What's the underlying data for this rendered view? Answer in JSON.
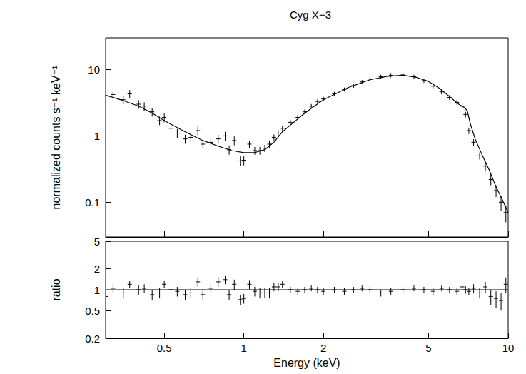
{
  "chart_data": [
    {
      "type": "scatter",
      "title": "Cyg X−3",
      "y_label": "normalized counts s⁻¹ keV⁻¹",
      "log": true,
      "grid": false,
      "tick_labels": "y",
      "xlim": [
        0.3,
        10
      ],
      "xticks": [
        0.5,
        1,
        2,
        5,
        10
      ],
      "ylim": [
        0.03,
        30
      ],
      "yticks": [
        0.1,
        1,
        10
      ],
      "series": [
        {
          "type": "scatter",
          "color": "#000000",
          "marker": "cross",
          "x": [
            0.3,
            0.32,
            0.35,
            0.37,
            0.4,
            0.42,
            0.45,
            0.48,
            0.5,
            0.53,
            0.56,
            0.6,
            0.63,
            0.67,
            0.7,
            0.75,
            0.8,
            0.85,
            0.88,
            0.92,
            0.97,
            1.0,
            1.05,
            1.1,
            1.15,
            1.2,
            1.25,
            1.3,
            1.35,
            1.4,
            1.5,
            1.6,
            1.7,
            1.8,
            1.9,
            2.0,
            2.2,
            2.4,
            2.6,
            2.8,
            3.0,
            3.3,
            3.6,
            4.0,
            4.4,
            4.8,
            5.2,
            5.6,
            6.0,
            6.4,
            6.7,
            6.9,
            7.1,
            7.4,
            7.8,
            8.2,
            8.6,
            9.0,
            9.4,
            9.8
          ],
          "values": [
            4,
            4.2,
            3.5,
            4.3,
            3,
            2.8,
            2.3,
            1.7,
            1.9,
            1.3,
            1.1,
            0.9,
            0.95,
            1.2,
            0.75,
            0.8,
            0.9,
            1.0,
            0.62,
            0.85,
            0.42,
            0.43,
            0.75,
            0.6,
            0.6,
            0.65,
            0.75,
            0.95,
            1.1,
            1.3,
            1.6,
            1.9,
            2.3,
            2.8,
            3.3,
            3.6,
            4.3,
            5,
            5.7,
            6.5,
            7.2,
            7.8,
            8.2,
            8.3,
            7.8,
            6.8,
            5.6,
            4.6,
            3.8,
            3.2,
            2.8,
            2.1,
            1.2,
            0.8,
            0.5,
            0.35,
            0.22,
            0.15,
            0.1,
            0.07
          ],
          "errors": [
            0.6,
            0.6,
            0.5,
            0.6,
            0.45,
            0.4,
            0.35,
            0.25,
            0.3,
            0.2,
            0.17,
            0.14,
            0.14,
            0.18,
            0.11,
            0.12,
            0.14,
            0.15,
            0.1,
            0.13,
            0.07,
            0.07,
            0.1,
            0.08,
            0.08,
            0.08,
            0.09,
            0.1,
            0.12,
            0.13,
            0.15,
            0.17,
            0.2,
            0.22,
            0.25,
            0.28,
            0.3,
            0.35,
            0.4,
            0.45,
            0.5,
            0.55,
            0.6,
            0.6,
            0.55,
            0.5,
            0.45,
            0.38,
            0.32,
            0.28,
            0.25,
            0.2,
            0.13,
            0.09,
            0.06,
            0.05,
            0.04,
            0.03,
            0.025,
            0.02
          ]
        },
        {
          "type": "line",
          "color": "#000000",
          "line_style": "solid",
          "x": [
            0.3,
            0.35,
            0.4,
            0.45,
            0.5,
            0.6,
            0.7,
            0.8,
            0.9,
            1.0,
            1.1,
            1.2,
            1.3,
            1.4,
            1.5,
            1.7,
            2.0,
            2.5,
            3.0,
            3.5,
            4.0,
            4.5,
            5.0,
            5.5,
            6.0,
            6.5,
            6.8,
            7.0,
            7.2,
            7.5,
            8,
            8.5,
            9,
            9.5,
            10
          ],
          "values": [
            4.1,
            3.4,
            2.8,
            2.2,
            1.7,
            1.15,
            0.85,
            0.7,
            0.6,
            0.56,
            0.56,
            0.62,
            0.8,
            1.15,
            1.45,
            2.2,
            3.5,
            5.4,
            7.0,
            7.9,
            8.2,
            7.6,
            6.6,
            5.2,
            3.9,
            3.0,
            2.7,
            2.4,
            1.5,
            0.9,
            0.5,
            0.3,
            0.17,
            0.11,
            0.07
          ]
        }
      ]
    },
    {
      "type": "scatter",
      "x_label": "Energy (keV)",
      "y_label": "ratio",
      "log": true,
      "grid": false,
      "xlim": [
        0.3,
        10
      ],
      "xticks": [
        0.5,
        1,
        2,
        5,
        10
      ],
      "ylim": [
        0.2,
        5
      ],
      "yticks": [
        0.2,
        0.5,
        1,
        2,
        5
      ],
      "series": [
        {
          "type": "scatter",
          "color": "#000000",
          "marker": "cross",
          "x": [
            0.3,
            0.32,
            0.35,
            0.37,
            0.4,
            0.42,
            0.45,
            0.48,
            0.5,
            0.53,
            0.56,
            0.6,
            0.63,
            0.67,
            0.7,
            0.75,
            0.8,
            0.85,
            0.88,
            0.92,
            0.97,
            1.0,
            1.05,
            1.1,
            1.15,
            1.2,
            1.25,
            1.3,
            1.35,
            1.4,
            1.5,
            1.6,
            1.7,
            1.8,
            1.9,
            2.0,
            2.2,
            2.4,
            2.6,
            2.8,
            3.0,
            3.3,
            3.6,
            4.0,
            4.4,
            4.8,
            5.2,
            5.6,
            6.0,
            6.4,
            6.7,
            6.9,
            7.1,
            7.4,
            7.8,
            8.2,
            8.6,
            9.0,
            9.4,
            9.8
          ],
          "values": [
            0.8,
            1.05,
            0.9,
            1.2,
            1.0,
            1.05,
            0.85,
            0.9,
            1.2,
            1.0,
            0.95,
            0.85,
            0.9,
            1.3,
            0.85,
            1.05,
            1.3,
            1.4,
            0.85,
            1.2,
            0.72,
            0.75,
            1.2,
            0.95,
            0.9,
            0.9,
            0.9,
            1.1,
            1.1,
            1.2,
            1.0,
            0.95,
            1.0,
            1.05,
            1.0,
            0.95,
            1.0,
            0.95,
            1.0,
            1.05,
            1.0,
            0.9,
            0.95,
            1.0,
            1.05,
            1.0,
            0.95,
            1.05,
            1.0,
            0.95,
            1.1,
            1.0,
            0.95,
            1.05,
            0.9,
            1.1,
            0.8,
            0.75,
            0.7,
            1.2
          ],
          "errors": [
            0.15,
            0.15,
            0.15,
            0.15,
            0.15,
            0.15,
            0.15,
            0.15,
            0.15,
            0.15,
            0.15,
            0.15,
            0.15,
            0.2,
            0.15,
            0.15,
            0.2,
            0.2,
            0.15,
            0.2,
            0.12,
            0.12,
            0.18,
            0.15,
            0.15,
            0.15,
            0.15,
            0.15,
            0.15,
            0.15,
            0.1,
            0.1,
            0.1,
            0.1,
            0.1,
            0.1,
            0.1,
            0.1,
            0.1,
            0.1,
            0.1,
            0.1,
            0.1,
            0.1,
            0.1,
            0.1,
            0.1,
            0.1,
            0.1,
            0.1,
            0.12,
            0.12,
            0.12,
            0.15,
            0.15,
            0.2,
            0.2,
            0.2,
            0.2,
            0.3
          ]
        },
        {
          "type": "line",
          "color": "#000000",
          "line_style": "solid",
          "x": [
            0.3,
            10
          ],
          "values": [
            1,
            1
          ]
        }
      ]
    }
  ]
}
